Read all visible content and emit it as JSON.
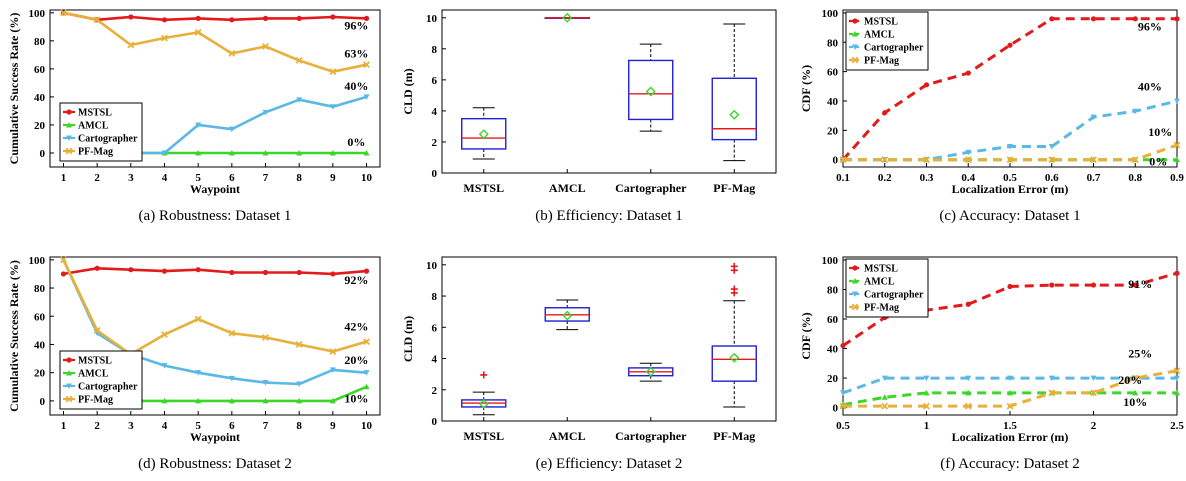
{
  "colors": {
    "MSTSL": "#e31a1c",
    "AMCL": "#3cd62a",
    "Cartographer": "#5bb8e6",
    "PF-Mag": "#e8b03a",
    "box_edge": "#1f1fd6",
    "median": "#e31a1c",
    "mean_marker": "#3cd62a",
    "outlier": "#e31a1c"
  },
  "chart_data": [
    {
      "type": "line",
      "caption": "(a) Robustness: Dataset 1",
      "xlabel": "Waypoint",
      "ylabel": "Cumulative Success Rate (%)",
      "xlim": [
        0.6,
        10.4
      ],
      "ylim": [
        -10,
        102
      ],
      "xticks": [
        1,
        2,
        3,
        4,
        5,
        6,
        7,
        8,
        9,
        10
      ],
      "yticks": [
        0,
        20,
        40,
        60,
        80,
        100
      ],
      "x": [
        1,
        2,
        3,
        4,
        5,
        6,
        7,
        8,
        9,
        10
      ],
      "linestyle": "solid",
      "legend": "bottom-left",
      "series": [
        {
          "name": "MSTSL",
          "values": [
            100,
            95,
            97,
            95,
            96,
            95,
            96,
            96,
            97,
            96
          ]
        },
        {
          "name": "AMCL",
          "values": [
            0,
            0,
            0,
            0,
            0,
            0,
            0,
            0,
            0,
            0
          ]
        },
        {
          "name": "Cartographer",
          "values": [
            0,
            0,
            0,
            0,
            20,
            17,
            29,
            38,
            33,
            40
          ]
        },
        {
          "name": "PF-Mag",
          "values": [
            100,
            95,
            77,
            82,
            86,
            71,
            76,
            66,
            58,
            63
          ]
        }
      ],
      "annotations": [
        {
          "text": "96%",
          "x": 9.7,
          "y": 88
        },
        {
          "text": "63%",
          "x": 9.7,
          "y": 68
        },
        {
          "text": "40%",
          "x": 9.7,
          "y": 45
        },
        {
          "text": "0%",
          "x": 9.7,
          "y": 5
        }
      ]
    },
    {
      "type": "box",
      "caption": "(b) Efficiency: Dataset 1",
      "xlabel": "",
      "ylabel": "CLD (m)",
      "ylim": [
        0,
        10.5
      ],
      "yticks": [
        0,
        2,
        4,
        6,
        8,
        10
      ],
      "categories": [
        "MSTSL",
        "AMCL",
        "Cartographer",
        "PF-Mag"
      ],
      "boxes": [
        {
          "name": "MSTSL",
          "min": 0.9,
          "q1": 1.55,
          "median": 2.25,
          "q3": 3.5,
          "max": 4.2,
          "mean": 2.5,
          "outliers": []
        },
        {
          "name": "AMCL",
          "min": 10,
          "q1": 10,
          "median": 10,
          "q3": 10,
          "max": 10,
          "mean": 10,
          "outliers": []
        },
        {
          "name": "Cartographer",
          "min": 2.7,
          "q1": 3.45,
          "median": 5.1,
          "q3": 7.25,
          "max": 8.3,
          "mean": 5.25,
          "outliers": []
        },
        {
          "name": "PF-Mag",
          "min": 0.8,
          "q1": 2.15,
          "median": 2.85,
          "q3": 6.1,
          "max": 9.6,
          "mean": 3.75,
          "outliers": []
        }
      ]
    },
    {
      "type": "line",
      "caption": "(c) Accuracy: Dataset 1",
      "xlabel": "Localization Error (m)",
      "ylabel": "CDF (%)",
      "xlim": [
        0.1,
        0.9
      ],
      "ylim": [
        -5,
        102
      ],
      "xticks": [
        0.1,
        0.2,
        0.3,
        0.4,
        0.5,
        0.6,
        0.7,
        0.8,
        0.9
      ],
      "yticks": [
        0,
        20,
        40,
        60,
        80,
        100
      ],
      "linestyle": "dashed",
      "legend": "top-left",
      "series": [
        {
          "name": "MSTSL",
          "x": [
            0.1,
            0.2,
            0.3,
            0.4,
            0.5,
            0.6,
            0.7,
            0.8,
            0.9
          ],
          "values": [
            0,
            32,
            51,
            59,
            78,
            96,
            96,
            96,
            96
          ]
        },
        {
          "name": "AMCL",
          "x": [
            0.1,
            0.2,
            0.3,
            0.4,
            0.5,
            0.6,
            0.7,
            0.8,
            0.9
          ],
          "values": [
            0,
            0,
            0,
            0,
            0,
            0,
            0,
            0,
            0
          ]
        },
        {
          "name": "Cartographer",
          "x": [
            0.1,
            0.2,
            0.3,
            0.4,
            0.5,
            0.6,
            0.7,
            0.8,
            0.9
          ],
          "values": [
            0,
            0,
            0,
            5,
            9,
            9,
            29,
            33,
            40
          ]
        },
        {
          "name": "PF-Mag",
          "x": [
            0.1,
            0.2,
            0.3,
            0.4,
            0.5,
            0.6,
            0.7,
            0.8,
            0.9
          ],
          "values": [
            0,
            0,
            0,
            0,
            0,
            0,
            0,
            0,
            10
          ]
        }
      ],
      "annotations": [
        {
          "text": "96%",
          "x": 0.835,
          "y": 88
        },
        {
          "text": "40%",
          "x": 0.835,
          "y": 47
        },
        {
          "text": "10%",
          "x": 0.86,
          "y": 16
        },
        {
          "text": "0%",
          "x": 0.855,
          "y": -4
        }
      ]
    },
    {
      "type": "line",
      "caption": "(d) Robustness: Dataset 2",
      "xlabel": "Waypoint",
      "ylabel": "Cumulative Success Rate (%)",
      "xlim": [
        0.6,
        10.4
      ],
      "ylim": [
        -10,
        102
      ],
      "xticks": [
        1,
        2,
        3,
        4,
        5,
        6,
        7,
        8,
        9,
        10
      ],
      "yticks": [
        0,
        20,
        40,
        60,
        80,
        100
      ],
      "x": [
        1,
        2,
        3,
        4,
        5,
        6,
        7,
        8,
        9,
        10
      ],
      "linestyle": "solid",
      "legend": "bottom-left",
      "series": [
        {
          "name": "MSTSL",
          "values": [
            90,
            94,
            93,
            92,
            93,
            91,
            91,
            91,
            90,
            92
          ]
        },
        {
          "name": "AMCL",
          "values": [
            0,
            0,
            0,
            0,
            0,
            0,
            0,
            0,
            0,
            10
          ]
        },
        {
          "name": "Cartographer",
          "values": [
            100,
            48,
            33,
            25,
            20,
            16,
            13,
            12,
            22,
            20
          ]
        },
        {
          "name": "PF-Mag",
          "values": [
            100,
            50,
            33,
            47,
            58,
            48,
            45,
            40,
            35,
            42
          ]
        }
      ],
      "annotations": [
        {
          "text": "92%",
          "x": 9.7,
          "y": 83
        },
        {
          "text": "42%",
          "x": 9.7,
          "y": 50
        },
        {
          "text": "20%",
          "x": 9.7,
          "y": 26
        },
        {
          "text": "10%",
          "x": 9.7,
          "y": -1
        }
      ]
    },
    {
      "type": "box",
      "caption": "(e) Efficiency: Dataset 2",
      "xlabel": "",
      "ylabel": "CLD (m)",
      "ylim": [
        0,
        10.5
      ],
      "yticks": [
        0,
        2,
        4,
        6,
        8,
        10
      ],
      "categories": [
        "MSTSL",
        "AMCL",
        "Cartographer",
        "PF-Mag"
      ],
      "boxes": [
        {
          "name": "MSTSL",
          "min": 0.4,
          "q1": 0.9,
          "median": 1.15,
          "q3": 1.35,
          "max": 1.85,
          "mean": 1.1,
          "outliers": [
            2.95
          ]
        },
        {
          "name": "AMCL",
          "min": 5.85,
          "q1": 6.4,
          "median": 6.8,
          "q3": 7.25,
          "max": 7.75,
          "mean": 6.75,
          "outliers": []
        },
        {
          "name": "Cartographer",
          "min": 2.55,
          "q1": 2.9,
          "median": 3.15,
          "q3": 3.4,
          "max": 3.7,
          "mean": 3.15,
          "outliers": []
        },
        {
          "name": "PF-Mag",
          "min": 0.9,
          "q1": 2.55,
          "median": 3.95,
          "q3": 4.8,
          "max": 7.7,
          "mean": 4.05,
          "outliers": [
            8.2,
            8.45,
            9.65,
            9.9
          ]
        }
      ]
    },
    {
      "type": "line",
      "caption": "(f) Accuracy: Dataset 2",
      "xlabel": "Localization Error (m)",
      "ylabel": "CDF (%)",
      "xlim": [
        0.5,
        2.5
      ],
      "ylim": [
        -5,
        102
      ],
      "xticks": [
        0.5,
        1,
        1.5,
        2,
        2.5
      ],
      "yticks": [
        0,
        20,
        40,
        60,
        80,
        100
      ],
      "linestyle": "dashed",
      "legend": "top-left",
      "series": [
        {
          "name": "MSTSL",
          "x": [
            0.5,
            0.75,
            1,
            1.25,
            1.5,
            1.75,
            2,
            2.25,
            2.5
          ],
          "values": [
            42,
            61,
            66,
            70,
            82,
            83,
            83,
            83,
            91
          ]
        },
        {
          "name": "AMCL",
          "x": [
            0.5,
            0.75,
            1,
            1.25,
            1.5,
            1.75,
            2,
            2.25,
            2.5
          ],
          "values": [
            2,
            7,
            10,
            10,
            10,
            10,
            10,
            10,
            10
          ]
        },
        {
          "name": "Cartographer",
          "x": [
            0.5,
            0.75,
            1,
            1.25,
            1.5,
            1.75,
            2,
            2.25,
            2.5
          ],
          "values": [
            10,
            20,
            20,
            20,
            20,
            20,
            20,
            20,
            20
          ]
        },
        {
          "name": "PF-Mag",
          "x": [
            0.5,
            0.75,
            1,
            1.25,
            1.5,
            1.75,
            2,
            2.25,
            2.5
          ],
          "values": [
            1,
            1,
            1,
            1,
            1,
            10,
            10,
            20,
            25
          ]
        }
      ],
      "annotations": [
        {
          "text": "91%",
          "x": 2.28,
          "y": 81
        },
        {
          "text": "25%",
          "x": 2.28,
          "y": 34
        },
        {
          "text": "20%",
          "x": 2.22,
          "y": 16
        },
        {
          "text": "10%",
          "x": 2.25,
          "y": 1
        }
      ]
    }
  ]
}
